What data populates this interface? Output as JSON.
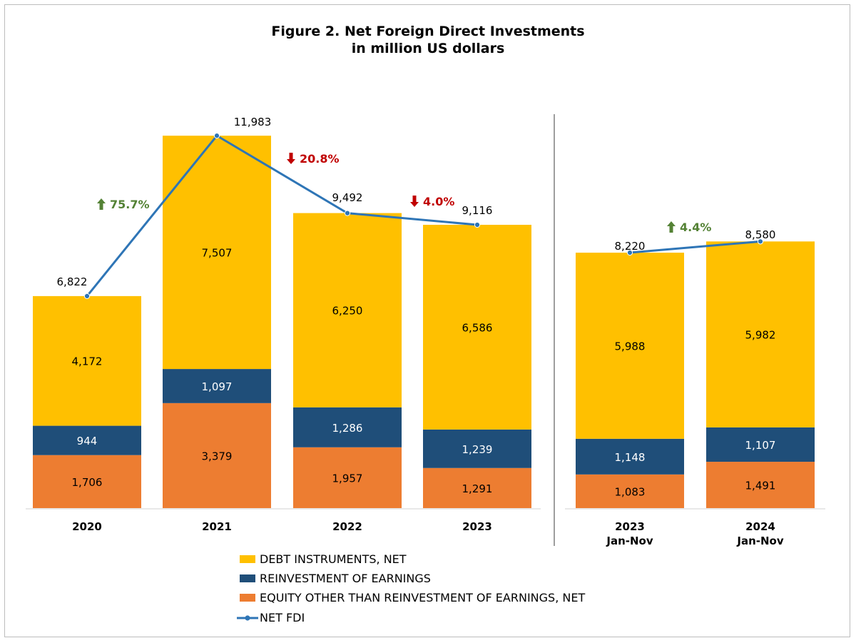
{
  "chart_data": {
    "type": "bar",
    "title": "Figure 2. Net Foreign Direct Investments",
    "subtitle": "in million US dollars",
    "stacked": true,
    "categories": [
      {
        "label": "2020",
        "sublabel": ""
      },
      {
        "label": "2021",
        "sublabel": ""
      },
      {
        "label": "2022",
        "sublabel": ""
      },
      {
        "label": "2023",
        "sublabel": ""
      },
      {
        "label": "2023",
        "sublabel": "Jan-Nov"
      },
      {
        "label": "2024",
        "sublabel": "Jan-Nov"
      }
    ],
    "series": [
      {
        "name": "EQUITY OTHER THAN REINVESTMENT OF EARNINGS, NET",
        "color": "#ED7D31",
        "values": [
          1706,
          3379,
          1957,
          1291,
          1083,
          1491
        ],
        "labels": [
          "1,706",
          "3,379",
          "1,957",
          "1,291",
          "1,083",
          "1,491"
        ]
      },
      {
        "name": "REINVESTMENT OF EARNINGS",
        "color": "#1F4E79",
        "values": [
          944,
          1097,
          1286,
          1239,
          1148,
          1107
        ],
        "labels": [
          "944",
          "1,097",
          "1,286",
          "1,239",
          "1,148",
          "1,107"
        ]
      },
      {
        "name": "DEBT INSTRUMENTS, NET",
        "color": "#FFC000",
        "values": [
          4172,
          7507,
          6250,
          6586,
          5988,
          5982
        ],
        "labels": [
          "4,172",
          "7,507",
          "6,250",
          "6,586",
          "5,988",
          "5,982"
        ]
      }
    ],
    "line": {
      "name": "NET FDI",
      "color": "#2E75B6",
      "values": [
        6822,
        11983,
        9492,
        9116,
        8220,
        8580
      ],
      "labels": [
        "6,822",
        "11,983",
        "9,492",
        "9,116",
        "8,220",
        "8,580"
      ]
    },
    "changes": [
      {
        "text": "75.7%",
        "direction": "up"
      },
      {
        "text": "20.8%",
        "direction": "down"
      },
      {
        "text": "4.0%",
        "direction": "down"
      },
      {
        "text": "4.4%",
        "direction": "up"
      }
    ],
    "legend": [
      {
        "name": "DEBT INSTRUMENTS, NET",
        "color": "#FFC000",
        "kind": "box"
      },
      {
        "name": "REINVESTMENT OF EARNINGS",
        "color": "#1F4E79",
        "kind": "box"
      },
      {
        "name": "EQUITY OTHER THAN REINVESTMENT OF EARNINGS, NET",
        "color": "#ED7D31",
        "kind": "box"
      },
      {
        "name": "NET FDI",
        "color": "#2E75B6",
        "kind": "line"
      }
    ],
    "legend_position": "bottom-center",
    "up_color": "#548235",
    "down_color": "#C00000",
    "grid": false
  }
}
